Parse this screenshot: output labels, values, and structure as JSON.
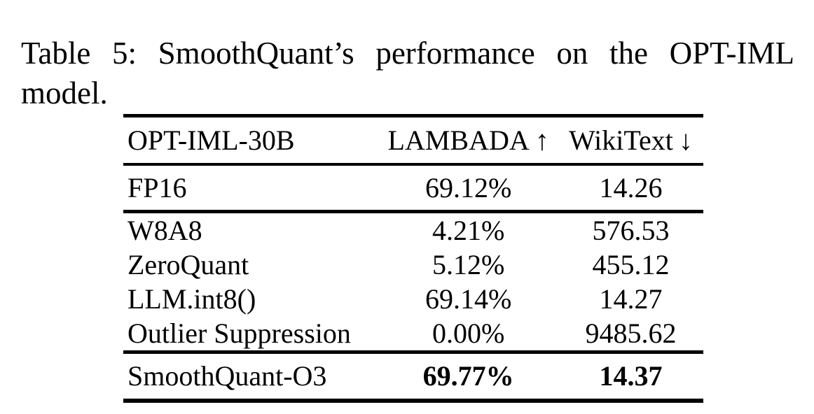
{
  "caption": {
    "line1": "Table 5: SmoothQuant’s performance on the OPT-IML",
    "line2": "model."
  },
  "table": {
    "header": {
      "model_column": "OPT-IML-30B",
      "lambada_label": "LAMBADA",
      "lambada_arrow": "↑",
      "wikitext_label": "WikiText",
      "wikitext_arrow": "↓"
    },
    "baseline_row": {
      "label": "FP16",
      "lambada": "69.12%",
      "wikitext": "14.26"
    },
    "method_rows": [
      {
        "label": "W8A8",
        "lambada": "4.21%",
        "wikitext": "576.53"
      },
      {
        "label": "ZeroQuant",
        "lambada": "5.12%",
        "wikitext": "455.12"
      },
      {
        "label": "LLM.int8()",
        "lambada": "69.14%",
        "wikitext": "14.27"
      },
      {
        "label": "Outlier Suppression",
        "lambada": "0.00%",
        "wikitext": "9485.62"
      }
    ],
    "result_row": {
      "label": "SmoothQuant-O3",
      "lambada": "69.77%",
      "wikitext": "14.37"
    }
  },
  "colors": {
    "text": "#000000",
    "background": "#ffffff",
    "rule": "#000000"
  },
  "chart_data": {
    "type": "table",
    "title": "Table 5: SmoothQuant’s performance on the OPT-IML model.",
    "columns": [
      "OPT-IML-30B",
      "LAMBADA ↑",
      "WikiText ↓"
    ],
    "rows": [
      [
        "FP16",
        "69.12%",
        "14.26"
      ],
      [
        "W8A8",
        "4.21%",
        "576.53"
      ],
      [
        "ZeroQuant",
        "5.12%",
        "455.12"
      ],
      [
        "LLM.int8()",
        "69.14%",
        "14.27"
      ],
      [
        "Outlier Suppression",
        "0.00%",
        "9485.62"
      ],
      [
        "SmoothQuant-O3",
        "69.77%",
        "14.37"
      ]
    ]
  }
}
